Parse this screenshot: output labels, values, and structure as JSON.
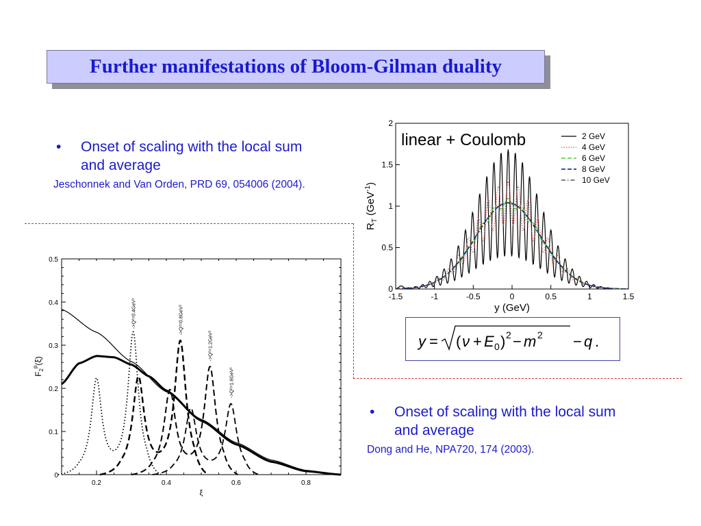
{
  "slide": {
    "title": "Further manifestations of Bloom-Gilman duality",
    "bullet_left": {
      "marker": "•",
      "text": "Onset of scaling with the local sum and average",
      "reference": "Jeschonnek and Van Orden, PRD 69, 054006 (2004)."
    },
    "bullet_right": {
      "marker": "•",
      "text": "Onset of scaling with the local sum and average",
      "reference": "Dong and He, NPA720, 174 (2003)."
    },
    "formula": {
      "lhs": "y",
      "eq": "=",
      "nu": "ν",
      "plus": "+",
      "E0": "E",
      "zero": "0",
      "sq1": "2",
      "minus": "−",
      "m": "m",
      "sq2": "2",
      "q": "q",
      "period": "."
    },
    "colors": {
      "title_bg": "#ccccff",
      "title_text": "#1a1ad0",
      "body_text": "#1a1acc",
      "divider": "#cc3333"
    }
  },
  "chart_data": [
    {
      "type": "line",
      "title": "",
      "xlabel": "y (GeV)",
      "ylabel_main": "R",
      "ylabel_sub": "T",
      "ylabel_rest": " (GeV",
      "ylabel_exp": "-1",
      "ylabel_close": ")",
      "annotation": "linear + Coulomb",
      "xlim": [
        -1.5,
        1.5
      ],
      "ylim": [
        0,
        2
      ],
      "xticks": [
        "-1.5",
        "-1",
        "-0.5",
        "0",
        "0.5",
        "1",
        "1.5"
      ],
      "yticks": [
        "0",
        "0.5",
        "1",
        "1.5",
        "2"
      ],
      "legend_position": "top-right",
      "series": [
        {
          "name": "2 GeV",
          "color": "#000000",
          "style": "solid"
        },
        {
          "name": "4 GeV",
          "color": "#e05050",
          "style": "dotted"
        },
        {
          "name": "6 GeV",
          "color": "#55cc33",
          "style": "dashed"
        },
        {
          "name": "8 GeV",
          "color": "#1a3a9a",
          "style": "dashed"
        },
        {
          "name": "10 GeV",
          "color": "#333333",
          "style": "dashdot"
        }
      ],
      "envelope": {
        "center": -0.05,
        "sigma": 0.42,
        "peak": 1.04
      },
      "oscillation_2GeV": {
        "period": 0.092,
        "max_height": 1.56
      }
    },
    {
      "type": "line",
      "title": "",
      "xlabel": "ξ",
      "ylabel_main": "F",
      "ylabel_sub": "2",
      "ylabel_sup": "p",
      "ylabel_rest": "(ξ)",
      "xlim": [
        0.1,
        0.9
      ],
      "ylim": [
        0,
        0.5
      ],
      "xticks": [
        "0.2",
        "0.4",
        "0.6",
        "0.8"
      ],
      "yticks": [
        "0",
        "0.1",
        "0.2",
        "0.3",
        "0.4",
        "0.5"
      ],
      "annotations": [
        "->Q²=0.4GeV²",
        "->Q²=0.8GeV²",
        "->Q²=1.2GeV²",
        "->Q²=1.6GeV²"
      ],
      "curves": {
        "thin_solid": {
          "x": [
            0.1,
            0.2,
            0.3,
            0.4,
            0.5,
            0.6,
            0.7,
            0.8,
            0.9
          ],
          "y": [
            0.383,
            0.33,
            0.262,
            0.192,
            0.128,
            0.074,
            0.034,
            0.01,
            0.0
          ]
        },
        "thick_solid": {
          "x": [
            0.1,
            0.15,
            0.2,
            0.25,
            0.3,
            0.35,
            0.4,
            0.5,
            0.6,
            0.7,
            0.8,
            0.9
          ],
          "y": [
            0.21,
            0.258,
            0.275,
            0.272,
            0.255,
            0.228,
            0.195,
            0.125,
            0.07,
            0.03,
            0.008,
            0.0
          ]
        },
        "dotted_Q0.4": {
          "peaks": [
            [
              0.2,
              0.215
            ],
            [
              0.305,
              0.325
            ]
          ]
        },
        "dashed_Q0.8": {
          "peaks": [
            [
              0.32,
              0.22
            ],
            [
              0.44,
              0.305
            ]
          ]
        },
        "dashed_Q1.2": {
          "peaks": [
            [
              0.41,
              0.19
            ],
            [
              0.525,
              0.245
            ]
          ]
        },
        "dashed_Q1.6": {
          "peaks": [
            [
              0.47,
              0.15
            ],
            [
              0.585,
              0.16
            ]
          ]
        }
      }
    }
  ]
}
